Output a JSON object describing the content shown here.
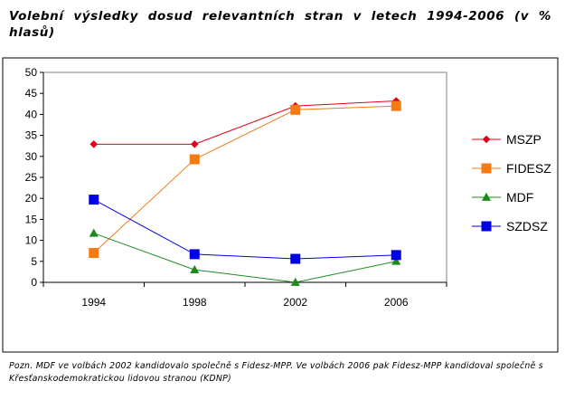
{
  "title": "Volební výsledky dosud relevantních stran v letech 1994-2006 (v % hlasů)",
  "note": "Pozn. MDF ve volbách 2002 kandidovalo společně s Fidesz-MPP. Ve volbách 2006 pak Fidesz-MPP kandidoval společně s Křesťanskodemokratickou lidovou stranou (KDNP)",
  "chart_data": {
    "type": "line",
    "title": "Volební výsledky dosud relevantních stran v letech 1994-2006 (v % hlasů)",
    "categories": [
      "1994",
      "1998",
      "2002",
      "2006"
    ],
    "ylim": [
      0,
      50
    ],
    "yticks": [
      0,
      5,
      10,
      15,
      20,
      25,
      30,
      35,
      40,
      45,
      50
    ],
    "grid": false,
    "legend_position": "right",
    "series": [
      {
        "name": "MSZP",
        "values": [
          32.9,
          32.9,
          42.0,
          43.2
        ],
        "color": "#e0001a",
        "marker": "diamond",
        "marker_size": "small"
      },
      {
        "name": "FIDESZ",
        "values": [
          7.0,
          29.3,
          41.1,
          42.0
        ],
        "color": "#f57a14",
        "marker": "square",
        "marker_size": "large"
      },
      {
        "name": "MDF",
        "values": [
          11.7,
          3.0,
          0.0,
          5.0
        ],
        "color": "#1e8a1e",
        "marker": "triangle",
        "marker_size": "small"
      },
      {
        "name": "SZDSZ",
        "values": [
          19.7,
          6.7,
          5.6,
          6.5
        ],
        "color": "#0000e6",
        "marker": "square",
        "marker_size": "large"
      }
    ]
  }
}
